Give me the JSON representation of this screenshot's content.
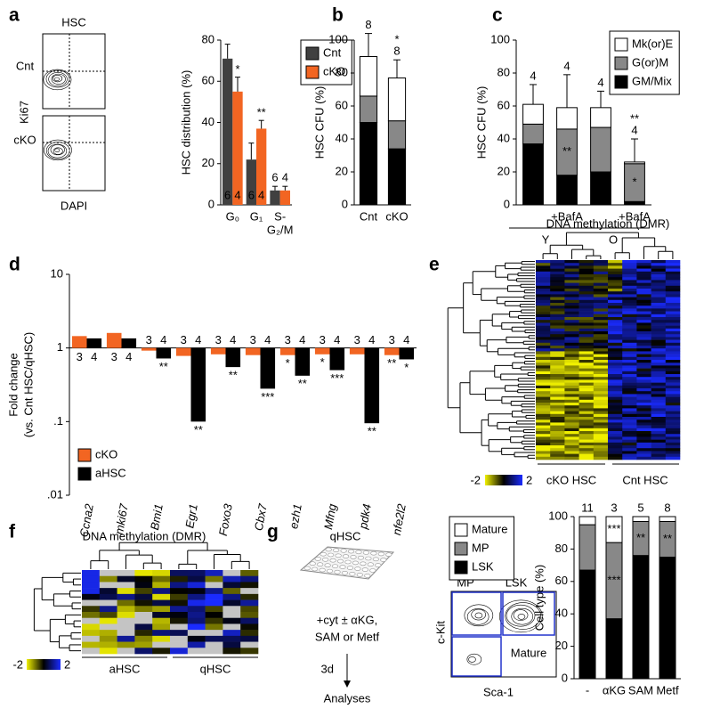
{
  "panels": [
    "a",
    "b",
    "c",
    "d",
    "e",
    "f",
    "g"
  ],
  "panel_a_flow": {
    "title": "HSC",
    "rows": [
      "Cnt",
      "cKO"
    ],
    "y_label": "Ki67",
    "x_label": "DAPI"
  },
  "panel_e_heatmap": {
    "title": "DNA methylation (DMR)",
    "scale": [
      -2,
      2
    ],
    "groups": [
      "cKO HSC",
      "Cnt HSC"
    ]
  },
  "panel_f_heatmap": {
    "title": "DNA methylation (DMR)",
    "scale": [
      -2,
      2
    ],
    "groups": [
      "aHSC",
      "qHSC"
    ]
  },
  "panel_g_scheme": {
    "plate": "qHSC",
    "treatment": [
      "+cyt ± αKG,",
      "SAM or Metf"
    ],
    "duration": "3d",
    "readout": "Analyses"
  },
  "panel_g_flow": {
    "y_label": "c-Kit",
    "x_label": "Sca-1",
    "gates": [
      "MP",
      "LSK",
      "Mature"
    ]
  },
  "chart_data": [
    {
      "type": "bar",
      "y_label": "HSC distribution (%)",
      "categories": [
        [
          "G₀"
        ],
        [
          "G₁"
        ],
        [
          "S-",
          "G₂/M"
        ]
      ],
      "ylim": [
        0,
        80
      ],
      "yticks": [
        0,
        20,
        40,
        60,
        80
      ],
      "legend": "right",
      "legend_frame": true,
      "series": [
        {
          "name": "Cnt",
          "color": "#404040",
          "values": [
            71,
            22,
            7
          ],
          "errors": [
            7,
            8,
            2
          ],
          "n_labels": [
            "6",
            "6",
            "6"
          ]
        },
        {
          "name": "cKO",
          "color": "#f26522",
          "values": [
            55,
            37,
            7
          ],
          "errors": [
            7,
            4,
            2
          ],
          "n_labels": [
            "4",
            "4",
            "4"
          ],
          "stars": [
            "*",
            "**",
            null
          ]
        }
      ]
    },
    {
      "type": "stacked_bar",
      "y_label": "HSC CFU (%)",
      "categories": [
        "Cnt",
        "cKO"
      ],
      "ylim": [
        0,
        100
      ],
      "yticks": [
        0,
        20,
        40,
        60,
        80,
        100
      ],
      "series": [
        {
          "name": "GM/Mix",
          "color": "#000000",
          "values": [
            50,
            34
          ],
          "stars": [
            null,
            "*"
          ]
        },
        {
          "name": "G(or)M",
          "color": "#888888",
          "values": [
            16,
            17
          ]
        },
        {
          "name": "Mk(or)E",
          "color": "#ffffff",
          "values": [
            24,
            26
          ],
          "errors": [
            14,
            11
          ]
        }
      ],
      "top_labels": [
        "8",
        "8"
      ],
      "top_stars": [
        null,
        "*"
      ]
    },
    {
      "type": "stacked_bar",
      "y_label": "HSC CFU (%)",
      "categories": [
        null,
        "+BafA",
        null,
        "+BafA"
      ],
      "groups": [
        "Y",
        "O"
      ],
      "ylim": [
        0,
        100
      ],
      "yticks": [
        0,
        20,
        40,
        60,
        80,
        100
      ],
      "legend": "top-right",
      "legend_frame": true,
      "series": [
        {
          "name": "GM/Mix",
          "color": "#000000",
          "values": [
            37,
            18,
            20,
            2
          ],
          "stars": [
            null,
            "*",
            null,
            null
          ]
        },
        {
          "name": "G(or)M",
          "color": "#888888",
          "values": [
            12,
            28,
            27,
            23
          ],
          "stars": [
            null,
            "**",
            null,
            "*"
          ]
        },
        {
          "name": "Mk(or)E",
          "color": "#ffffff",
          "values": [
            12,
            13,
            12,
            1
          ],
          "errors": [
            12,
            20,
            10,
            14
          ]
        }
      ],
      "top_labels": [
        "4",
        "4",
        "4",
        "4"
      ],
      "top_stars": [
        null,
        null,
        null,
        "**"
      ]
    },
    {
      "type": "bar",
      "y_label": [
        "Fold change",
        "(vs. Cnt HSC/qHSC)"
      ],
      "log": true,
      "rotated_labels": true,
      "italic_categories": true,
      "categories": [
        "Ccna2",
        "mki67",
        "Bmi1",
        "Egr1",
        "Foxo3",
        "Cbx7",
        "ezh1",
        "Mfng",
        "pdk4",
        "nfe2l2"
      ],
      "ylim": [
        0.01,
        10
      ],
      "yticks": [
        {
          "value": 0.01,
          "label": ".01"
        },
        {
          "value": 0.1,
          "label": ".1"
        },
        1,
        10
      ],
      "legend": "bottom-left",
      "series": [
        {
          "name": "cKO",
          "color": "#f26522",
          "values": [
            1.45,
            1.6,
            0.92,
            0.78,
            0.82,
            0.8,
            0.8,
            0.82,
            0.82,
            0.8
          ],
          "n_labels": [
            "3",
            "3",
            "3",
            "3",
            "3",
            "3",
            "3",
            "3",
            "3",
            "3"
          ],
          "stars": [
            null,
            null,
            null,
            null,
            null,
            null,
            "*",
            "*",
            null,
            "**"
          ]
        },
        {
          "name": "aHSC",
          "color": "#000000",
          "values": [
            1.35,
            1.35,
            0.72,
            0.1,
            0.55,
            0.28,
            0.42,
            0.5,
            0.095,
            0.7
          ],
          "n_labels": [
            "4",
            "4",
            "4",
            "4",
            "4",
            "4",
            "4",
            "4",
            "4",
            "4"
          ],
          "stars": [
            null,
            null,
            "**",
            "**",
            "**",
            "***",
            "**",
            "***",
            "**",
            "*"
          ]
        }
      ]
    },
    {
      "type": "stacked_bar",
      "y_label": "Cell type (%)",
      "categories": [
        "-",
        "αKG",
        "SAM",
        "Metf"
      ],
      "ylim": [
        0,
        100
      ],
      "yticks": [
        0,
        20,
        40,
        60,
        80,
        100
      ],
      "legend": "left",
      "legend_frame": true,
      "series": [
        {
          "name": "LSK",
          "color": "#000000",
          "values": [
            67,
            37,
            76,
            75
          ],
          "stars": [
            null,
            "***",
            "**",
            "**"
          ]
        },
        {
          "name": "MP",
          "color": "#888888",
          "values": [
            28,
            47,
            21,
            22
          ],
          "stars": [
            null,
            "***",
            "**",
            "**"
          ]
        },
        {
          "name": "Mature",
          "color": "#ffffff",
          "values": [
            5,
            16,
            3,
            3
          ],
          "stars": [
            null,
            "***",
            null,
            null
          ]
        }
      ],
      "top_labels": [
        "11",
        "3",
        "5",
        "8"
      ]
    }
  ]
}
